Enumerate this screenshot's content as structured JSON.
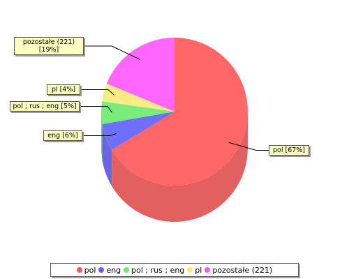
{
  "chart_data": {
    "type": "pie",
    "categories": [
      "pol",
      "eng",
      "pol ; rus ; eng",
      "pl",
      "pozostałe (221)"
    ],
    "values": [
      67,
      6,
      5,
      4,
      19
    ],
    "value_labels": [
      "pol [67%]",
      "eng [6%]",
      "pol ; rus ; eng [5%]",
      "pl [4%]",
      "pozostałe (221) [19%]"
    ],
    "colors": [
      "#ff5a5a",
      "#6262ff",
      "#6eea6e",
      "#f6ea7a",
      "#ff58ff"
    ],
    "legend": "bottom"
  }
}
